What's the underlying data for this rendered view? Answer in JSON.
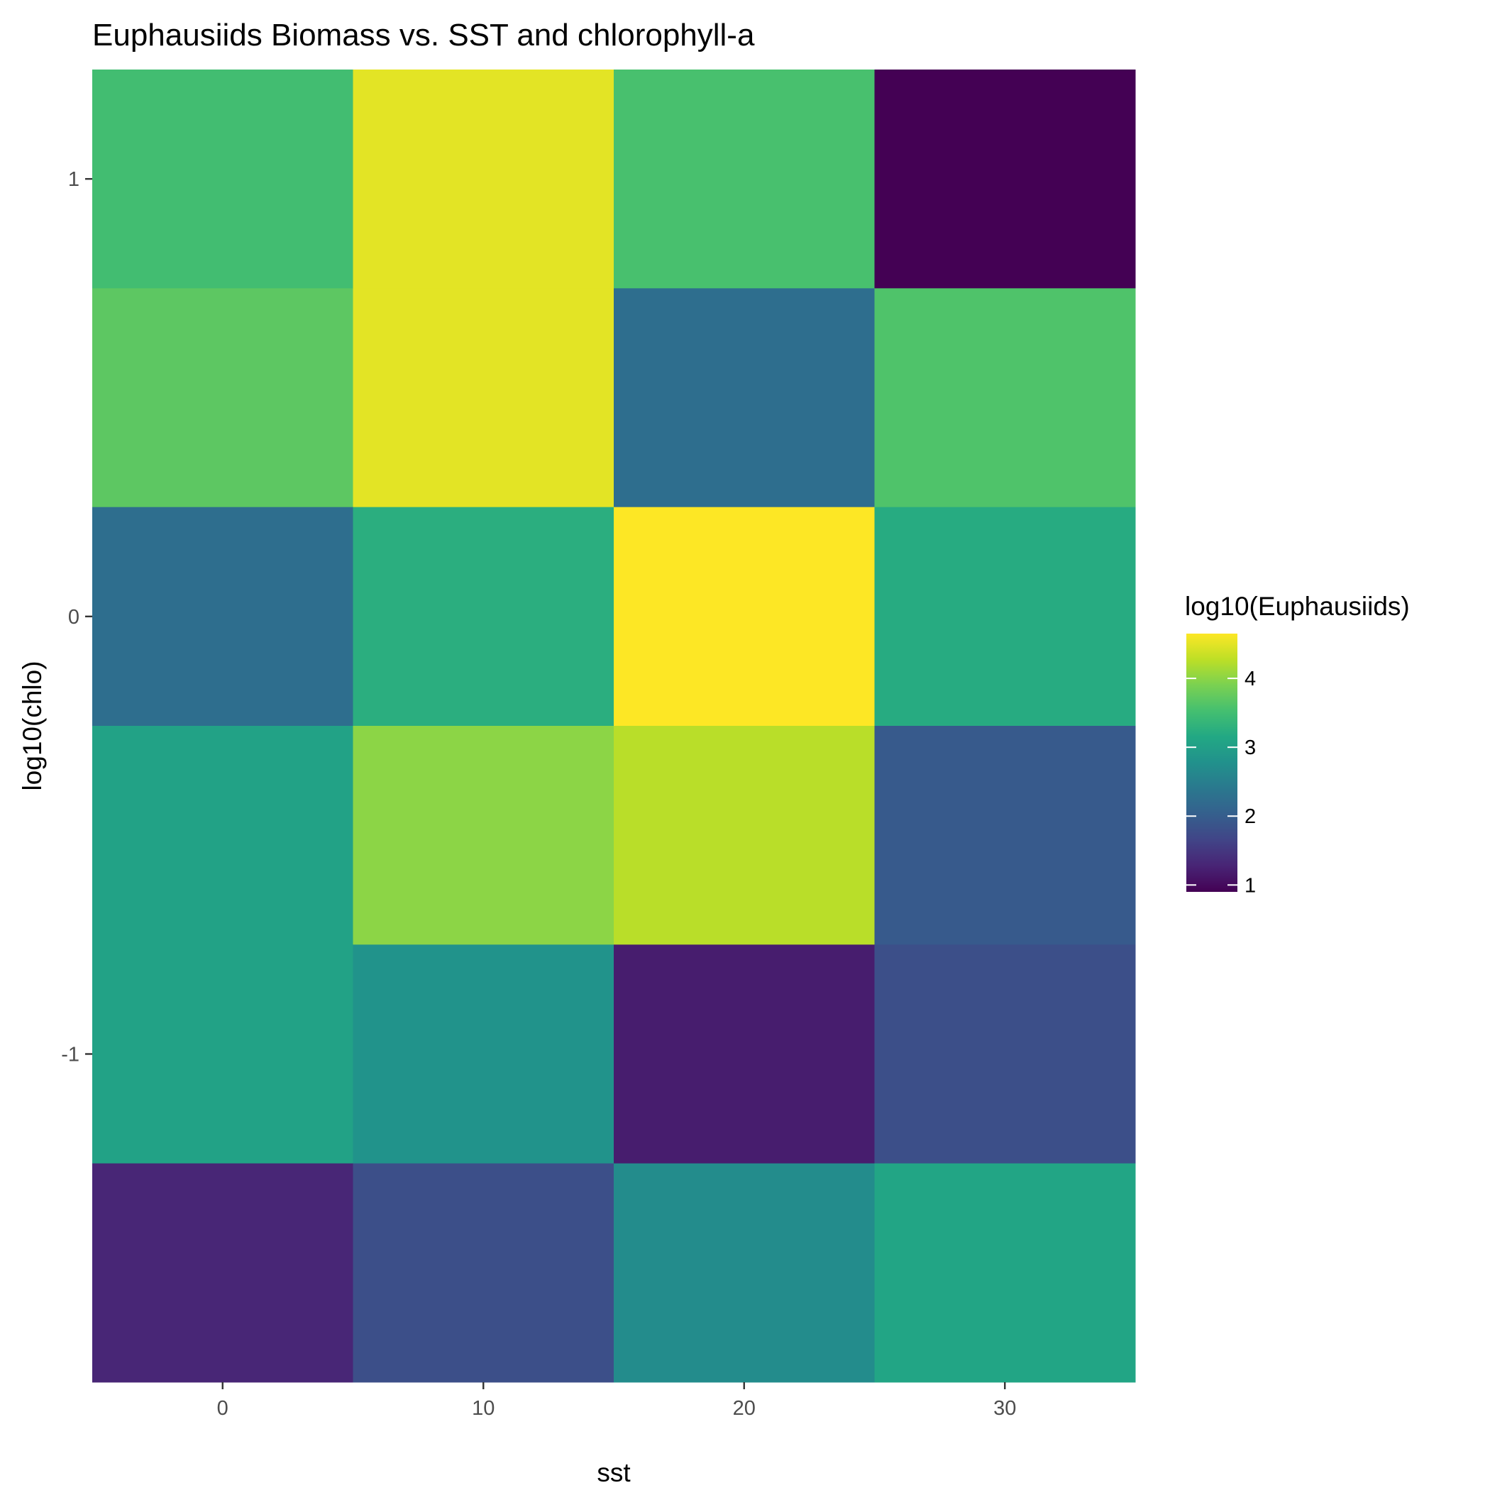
{
  "chart_data": {
    "type": "heatmap",
    "title": "Euphausiids Biomass vs. SST and chlorophyll-a",
    "xlabel": "sst",
    "ylabel": "log10(chlo)",
    "x": [
      0,
      10,
      20,
      30
    ],
    "y": [
      1,
      0.5,
      0,
      -0.5,
      -1,
      -1.5
    ],
    "xlim": [
      -5,
      35
    ],
    "ylim": [
      -1.75,
      1.25
    ],
    "x_ticks": [
      "0",
      "10",
      "20",
      "30"
    ],
    "y_ticks": [
      "1",
      "0",
      "-1"
    ],
    "values": [
      [
        3.5,
        4.5,
        3.55,
        0.9
      ],
      [
        3.7,
        4.5,
        2.25,
        3.6
      ],
      [
        2.25,
        3.25,
        4.65,
        3.2
      ],
      [
        3.05,
        4.0,
        4.25,
        1.95
      ],
      [
        3.05,
        2.8,
        1.2,
        1.8
      ],
      [
        1.3,
        1.8,
        2.7,
        3.1
      ]
    ],
    "colorscale": "viridis",
    "legend": {
      "title": "log10(Euphausiids)",
      "ticks": [
        "1",
        "2",
        "3",
        "4"
      ],
      "range": [
        0.9,
        4.65
      ],
      "position": "right"
    },
    "grid": true
  }
}
